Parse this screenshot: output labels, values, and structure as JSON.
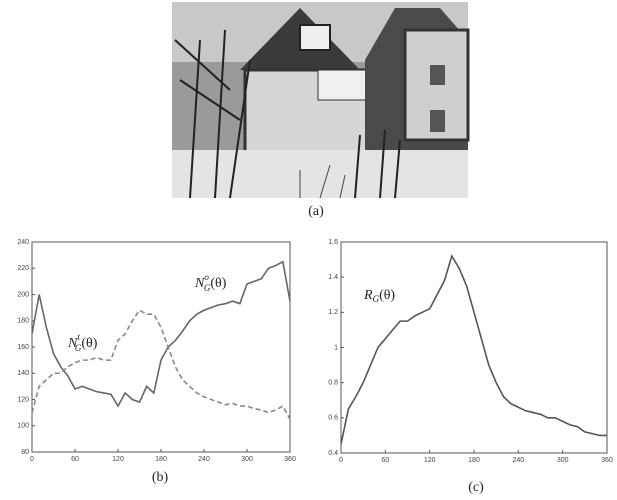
{
  "image": {
    "caption": "(a)"
  },
  "chart_data": [
    {
      "type": "line",
      "caption": "(b)",
      "x": [
        0,
        10,
        20,
        30,
        40,
        50,
        60,
        70,
        80,
        90,
        100,
        110,
        120,
        130,
        140,
        150,
        160,
        170,
        180,
        190,
        200,
        210,
        220,
        230,
        240,
        250,
        260,
        270,
        280,
        290,
        300,
        310,
        320,
        330,
        340,
        350,
        360
      ],
      "xlim": [
        0,
        360
      ],
      "xticks": [
        0,
        60,
        120,
        180,
        240,
        300,
        360
      ],
      "ylim": [
        80,
        240
      ],
      "yticks": [
        80,
        100,
        120,
        140,
        160,
        180,
        200,
        220,
        240
      ],
      "series": [
        {
          "label": {
            "base": "N",
            "sup": "o",
            "sub": "G",
            "arg": "(θ)"
          },
          "color": "#666666",
          "dashed": false,
          "values": [
            170,
            200,
            175,
            155,
            145,
            138,
            128,
            130,
            128,
            126,
            125,
            124,
            115,
            125,
            120,
            118,
            130,
            125,
            150,
            160,
            165,
            172,
            180,
            185,
            188,
            190,
            192,
            193,
            195,
            193,
            208,
            210,
            212,
            220,
            222,
            225,
            195
          ]
        },
        {
          "label": {
            "base": "N",
            "sup": "t",
            "sub": "G",
            "arg": "(θ)"
          },
          "color": "#888888",
          "dashed": true,
          "values": [
            110,
            130,
            135,
            140,
            140,
            145,
            148,
            150,
            150,
            152,
            150,
            150,
            165,
            170,
            180,
            188,
            185,
            185,
            175,
            160,
            145,
            135,
            130,
            125,
            122,
            120,
            118,
            116,
            117,
            115,
            115,
            113,
            112,
            110,
            112,
            115,
            105
          ]
        }
      ]
    },
    {
      "type": "line",
      "caption": "(c)",
      "x": [
        0,
        10,
        20,
        30,
        40,
        50,
        60,
        70,
        80,
        90,
        100,
        110,
        120,
        130,
        140,
        150,
        160,
        170,
        180,
        190,
        200,
        210,
        220,
        230,
        240,
        250,
        260,
        270,
        280,
        290,
        300,
        310,
        320,
        330,
        340,
        350,
        360
      ],
      "xlim": [
        0,
        360
      ],
      "xticks": [
        0,
        60,
        120,
        180,
        240,
        300,
        360
      ],
      "ylim": [
        0.4,
        1.6
      ],
      "yticks": [
        0.4,
        0.6,
        0.8,
        1,
        1.2,
        1.4,
        1.6
      ],
      "series": [
        {
          "label": {
            "base": "R",
            "sub": "G",
            "arg": "(θ)"
          },
          "color": "#555555",
          "dashed": false,
          "values": [
            0.45,
            0.65,
            0.72,
            0.8,
            0.9,
            1.0,
            1.05,
            1.1,
            1.15,
            1.15,
            1.18,
            1.2,
            1.22,
            1.3,
            1.38,
            1.52,
            1.45,
            1.35,
            1.2,
            1.05,
            0.9,
            0.8,
            0.72,
            0.68,
            0.66,
            0.64,
            0.63,
            0.62,
            0.6,
            0.6,
            0.58,
            0.56,
            0.55,
            0.52,
            0.51,
            0.5,
            0.5
          ]
        }
      ]
    }
  ]
}
